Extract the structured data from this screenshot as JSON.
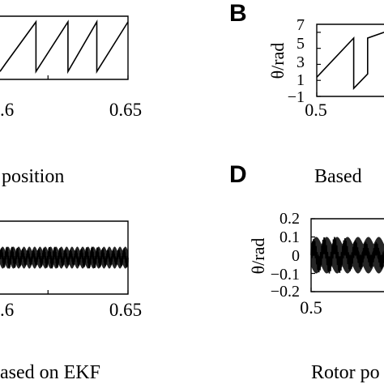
{
  "panel_labels": {
    "b": "B",
    "d": "D"
  },
  "captions": {
    "top_left": "position",
    "top_right": "Based",
    "bottom_left": "ased on EKF",
    "bottom_right": "Rotor po"
  },
  "chart_data": [
    {
      "id": "top_left",
      "type": "line",
      "x_tick_labels": [
        ".6",
        "0.65"
      ],
      "x_ticks": [
        0.6,
        0.65
      ],
      "xlim": [
        0.57,
        0.65
      ],
      "ylim": [
        -1,
        7
      ],
      "series": [
        {
          "x": [
            0.57,
            0.5735,
            0.5735,
            0.5925,
            0.5925,
            0.6125,
            0.6125,
            0.6305,
            0.6305,
            0.65
          ],
          "y": [
            0.0,
            1.0,
            1.0,
            6.28,
            0.0,
            6.28,
            0.0,
            6.28,
            0.0,
            6.28
          ]
        }
      ]
    },
    {
      "id": "top_right",
      "type": "line",
      "ylabel": "θ/rad",
      "y_ticks": [
        7,
        5,
        3,
        1,
        -1
      ],
      "y_tick_labels": [
        "7",
        "5",
        "3",
        "1",
        "−1"
      ],
      "x_ticks": [
        0.5
      ],
      "x_tick_labels": [
        "0.5"
      ],
      "xlim": [
        0.5,
        0.57
      ],
      "ylim": [
        -1,
        8
      ],
      "series": [
        {
          "x": [
            0.5,
            0.5385,
            0.5385,
            0.553,
            0.553,
            0.57
          ],
          "y": [
            1.4,
            6.28,
            0.0,
            1.8,
            6.28,
            7.0
          ]
        }
      ]
    },
    {
      "id": "bottom_left",
      "type": "line",
      "x_tick_labels": [
        ".6",
        "0.65"
      ],
      "x_ticks": [
        0.6,
        0.65
      ],
      "xlim": [
        0.57,
        0.65
      ],
      "ylim": [
        -0.2,
        0.2
      ],
      "signal": {
        "amplitude": 0.06,
        "cycles": 24,
        "form": "dense oscillation"
      }
    },
    {
      "id": "bottom_right",
      "type": "line",
      "ylabel": "θ/rad",
      "y_ticks": [
        0.2,
        0.1,
        0,
        -0.1,
        -0.2
      ],
      "y_tick_labels": [
        "0.2",
        "0.1",
        "0",
        "−0.1",
        "−0.2"
      ],
      "x_ticks": [
        0.5
      ],
      "x_tick_labels": [
        "0.5"
      ],
      "xlim": [
        0.5,
        0.57
      ],
      "ylim": [
        -0.2,
        0.2
      ],
      "signal": {
        "amplitude": 0.1,
        "cycles": 7,
        "form": "dense oscillation"
      }
    }
  ]
}
